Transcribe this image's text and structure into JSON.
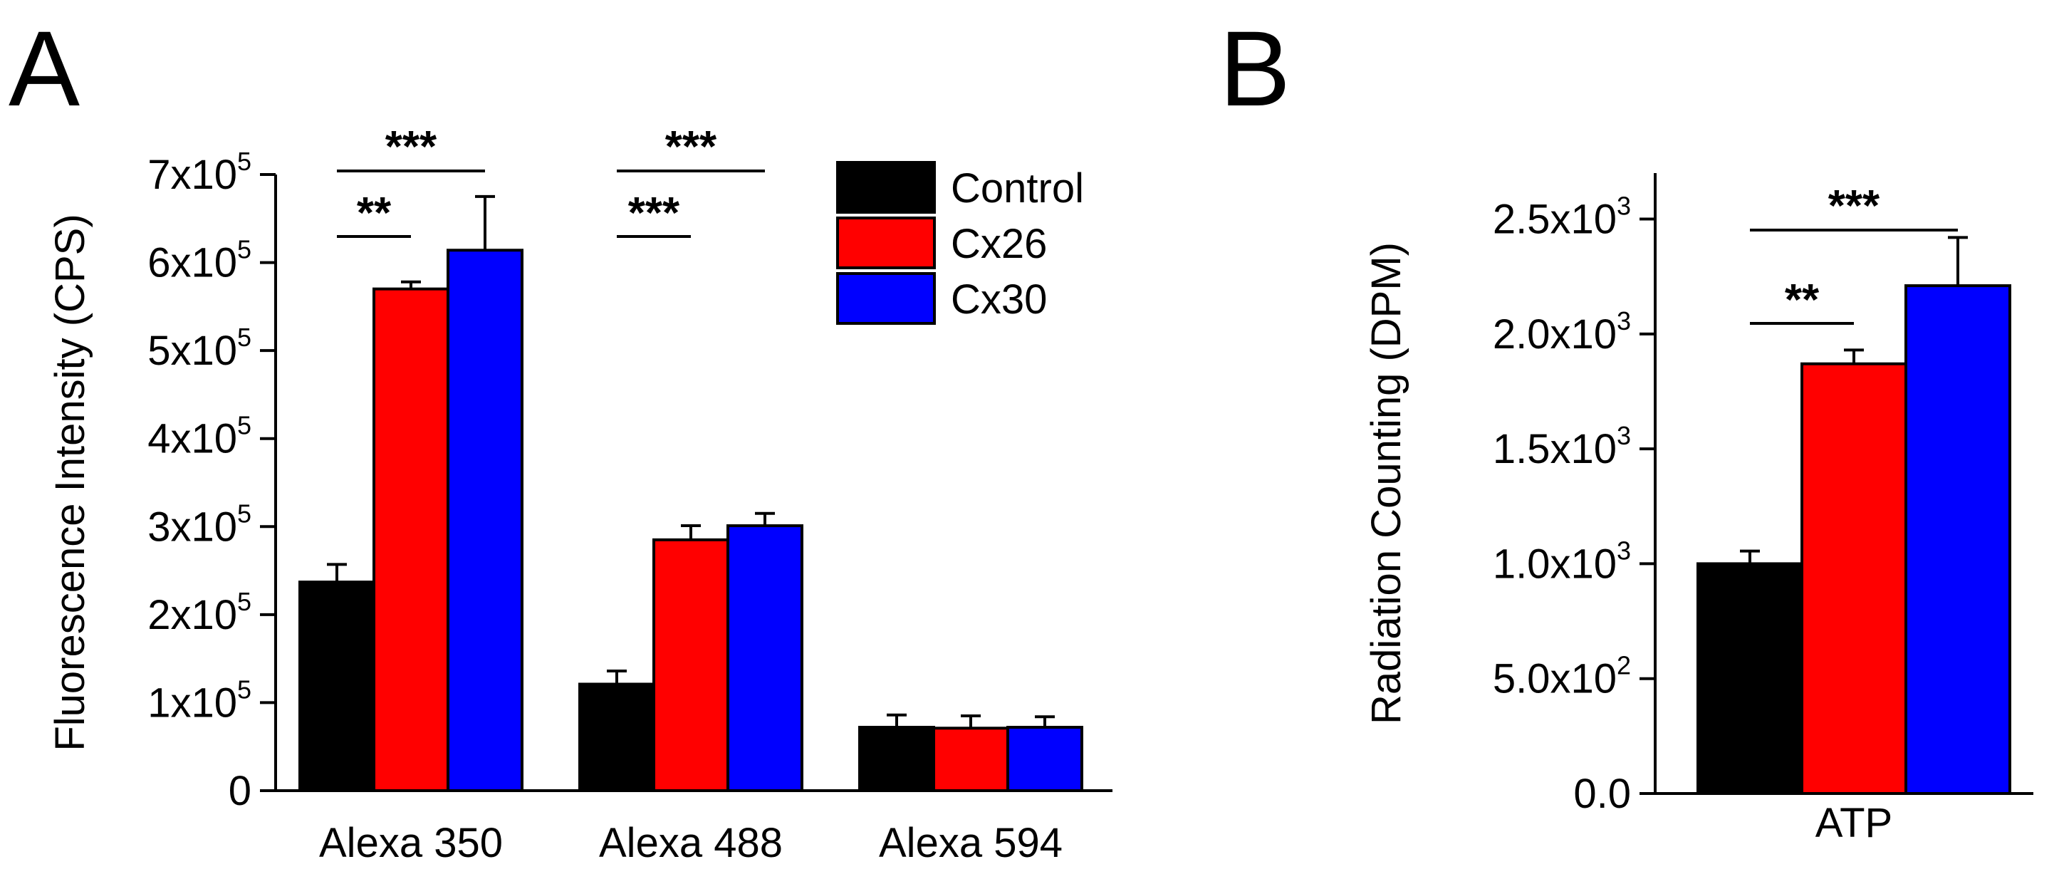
{
  "chart_data": [
    {
      "panel": "A",
      "type": "bar",
      "ylabel": "Fluorescence Intensity (CPS)",
      "ylim": [
        0,
        700000
      ],
      "yticks": [
        {
          "value": 0,
          "base": "0",
          "exp": ""
        },
        {
          "value": 100000,
          "base": "1x10",
          "exp": "5"
        },
        {
          "value": 200000,
          "base": "2x10",
          "exp": "5"
        },
        {
          "value": 300000,
          "base": "3x10",
          "exp": "5"
        },
        {
          "value": 400000,
          "base": "4x10",
          "exp": "5"
        },
        {
          "value": 500000,
          "base": "5x10",
          "exp": "5"
        },
        {
          "value": 600000,
          "base": "6x10",
          "exp": "5"
        },
        {
          "value": 700000,
          "base": "7x10",
          "exp": "5"
        }
      ],
      "categories": [
        "Alexa 350",
        "Alexa 488",
        "Alexa 594"
      ],
      "series": [
        {
          "name": "Control",
          "color": "#000000",
          "values": [
            237000,
            121000,
            72000
          ],
          "errors": [
            20000,
            15000,
            14000
          ]
        },
        {
          "name": "Cx26",
          "color": "#ff0000",
          "values": [
            570000,
            285000,
            71000
          ],
          "errors": [
            8000,
            16000,
            14000
          ]
        },
        {
          "name": "Cx30",
          "color": "#0000ff",
          "values": [
            614000,
            301000,
            72000
          ],
          "errors": [
            61000,
            14000,
            12000
          ]
        }
      ],
      "legend": {
        "position": "top-right",
        "entries": [
          "Control",
          "Cx26",
          "Cx30"
        ]
      },
      "significance": [
        {
          "category": 0,
          "from": "Control",
          "to": "Cx26",
          "label": "**"
        },
        {
          "category": 0,
          "from": "Control",
          "to": "Cx30",
          "label": "***"
        },
        {
          "category": 1,
          "from": "Control",
          "to": "Cx26",
          "label": "***"
        },
        {
          "category": 1,
          "from": "Control",
          "to": "Cx30",
          "label": "***"
        }
      ]
    },
    {
      "panel": "B",
      "type": "bar",
      "ylabel": "Radiation Counting (DPM)",
      "ylim": [
        0,
        2700
      ],
      "yticks": [
        {
          "value": 0,
          "base": "0.0",
          "exp": ""
        },
        {
          "value": 500,
          "base": "5.0x10",
          "exp": "2"
        },
        {
          "value": 1000,
          "base": "1.0x10",
          "exp": "3"
        },
        {
          "value": 1500,
          "base": "1.5x10",
          "exp": "3"
        },
        {
          "value": 2000,
          "base": "2.0x10",
          "exp": "3"
        },
        {
          "value": 2500,
          "base": "2.5x10",
          "exp": "3"
        }
      ],
      "categories": [
        "ATP"
      ],
      "series": [
        {
          "name": "Control",
          "color": "#000000",
          "values": [
            1000
          ],
          "errors": [
            55
          ]
        },
        {
          "name": "Cx26",
          "color": "#ff0000",
          "values": [
            1870
          ],
          "errors": [
            60
          ]
        },
        {
          "name": "Cx30",
          "color": "#0000ff",
          "values": [
            2210
          ],
          "errors": [
            210
          ]
        }
      ],
      "significance": [
        {
          "category": 0,
          "from": "Control",
          "to": "Cx26",
          "label": "**"
        },
        {
          "category": 0,
          "from": "Control",
          "to": "Cx30",
          "label": "***"
        }
      ]
    }
  ]
}
